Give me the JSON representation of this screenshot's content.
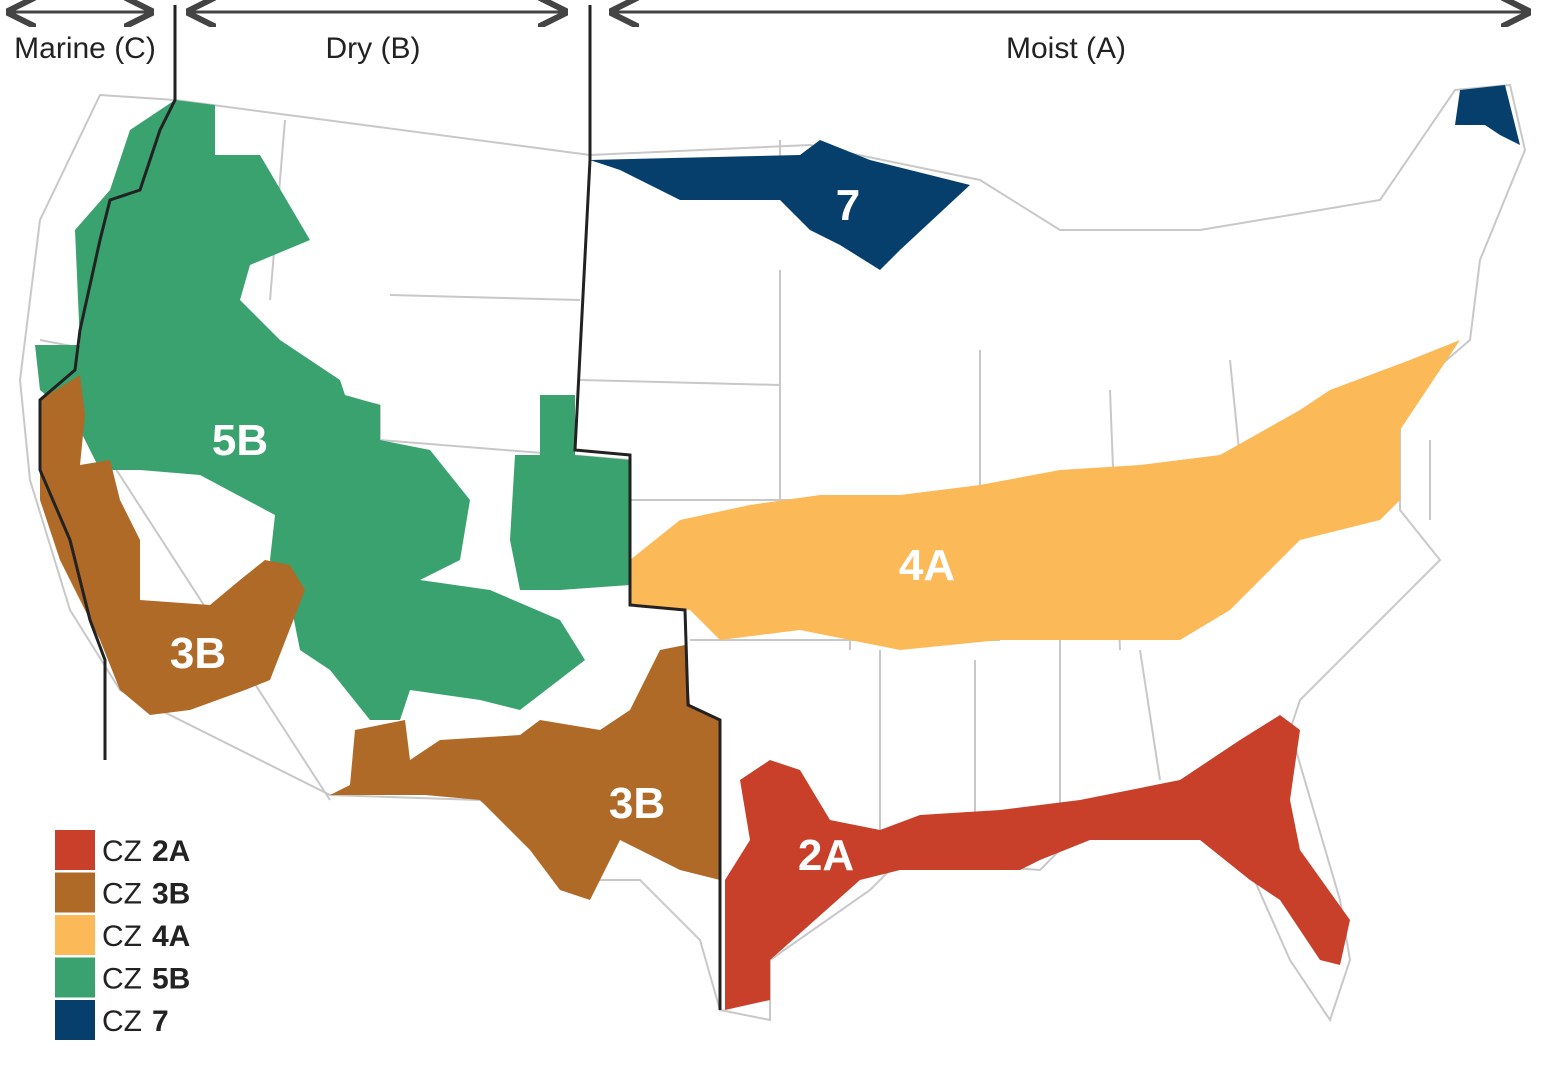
{
  "header": {
    "regimes": [
      {
        "label": "Marine (C)"
      },
      {
        "label": "Dry (B)"
      },
      {
        "label": "Moist (A)"
      }
    ]
  },
  "map": {
    "zone_labels": [
      "5B",
      "3B",
      "3B",
      "7",
      "4A",
      "2A"
    ]
  },
  "legend": {
    "items": [
      {
        "prefix": "CZ",
        "code": "2A",
        "color": "#c8402a"
      },
      {
        "prefix": "CZ",
        "code": "3B",
        "color": "#b06a28"
      },
      {
        "prefix": "CZ",
        "code": "4A",
        "color": "#fbb957"
      },
      {
        "prefix": "CZ",
        "code": "5B",
        "color": "#3aa26e"
      },
      {
        "prefix": "CZ",
        "code": "7",
        "color": "#063f6c"
      }
    ]
  }
}
